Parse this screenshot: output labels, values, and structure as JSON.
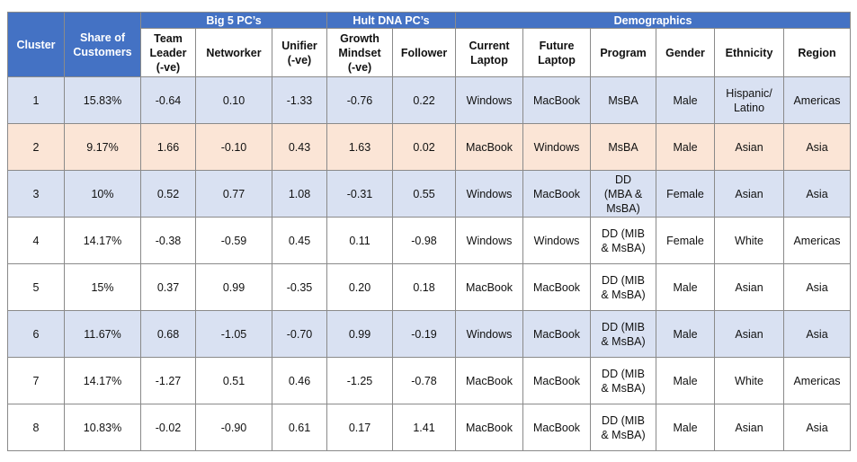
{
  "group_headers": {
    "big5": "Big 5 PC’s",
    "hult": "Hult DNA PC’s",
    "demo": "Demographics"
  },
  "columns": {
    "cluster": "Cluster",
    "share": "Share of\nCustomers",
    "team_leader": "Team\nLeader\n(-ve)",
    "networker": "Networker",
    "unifier": "Unifier\n(-ve)",
    "growth": "Growth\nMindset\n(-ve)",
    "follower": "Follower",
    "current_laptop": "Current\nLaptop",
    "future_laptop": "Future\nLaptop",
    "program": "Program",
    "gender": "Gender",
    "ethnicity": "Ethnicity",
    "region": "Region"
  },
  "colors": {
    "header_blue": "#4472c4",
    "row_blue": "#d9e1f2",
    "row_orange": "#fbe5d6",
    "row_white": "#ffffff"
  },
  "rows": [
    [
      "1",
      "15.83%",
      "-0.64",
      "0.10",
      "-1.33",
      "-0.76",
      "0.22",
      "Windows",
      "MacBook",
      "MsBA",
      "Male",
      "Hispanic/\nLatino",
      "Americas"
    ],
    [
      "2",
      "9.17%",
      "1.66",
      "-0.10",
      "0.43",
      "1.63",
      "0.02",
      "MacBook",
      "Windows",
      "MsBA",
      "Male",
      "Asian",
      "Asia"
    ],
    [
      "3",
      "10%",
      "0.52",
      "0.77",
      "1.08",
      "-0.31",
      "0.55",
      "Windows",
      "MacBook",
      "DD\n(MBA &\nMsBA)",
      "Female",
      "Asian",
      "Asia"
    ],
    [
      "4",
      "14.17%",
      "-0.38",
      "-0.59",
      "0.45",
      "0.11",
      "-0.98",
      "Windows",
      "Windows",
      "DD (MIB\n& MsBA)",
      "Female",
      "White",
      "Americas"
    ],
    [
      "5",
      "15%",
      "0.37",
      "0.99",
      "-0.35",
      "0.20",
      "0.18",
      "MacBook",
      "MacBook",
      "DD (MIB\n& MsBA)",
      "Male",
      "Asian",
      "Asia"
    ],
    [
      "6",
      "11.67%",
      "0.68",
      "-1.05",
      "-0.70",
      "0.99",
      "-0.19",
      "Windows",
      "MacBook",
      "DD (MIB\n& MsBA)",
      "Male",
      "Asian",
      "Asia"
    ],
    [
      "7",
      "14.17%",
      "-1.27",
      "0.51",
      "0.46",
      "-1.25",
      "-0.78",
      "MacBook",
      "MacBook",
      "DD (MIB\n& MsBA)",
      "Male",
      "White",
      "Americas"
    ],
    [
      "8",
      "10.83%",
      "-0.02",
      "-0.90",
      "0.61",
      "0.17",
      "1.41",
      "MacBook",
      "MacBook",
      "DD (MIB\n& MsBA)",
      "Male",
      "Asian",
      "Asia"
    ]
  ]
}
